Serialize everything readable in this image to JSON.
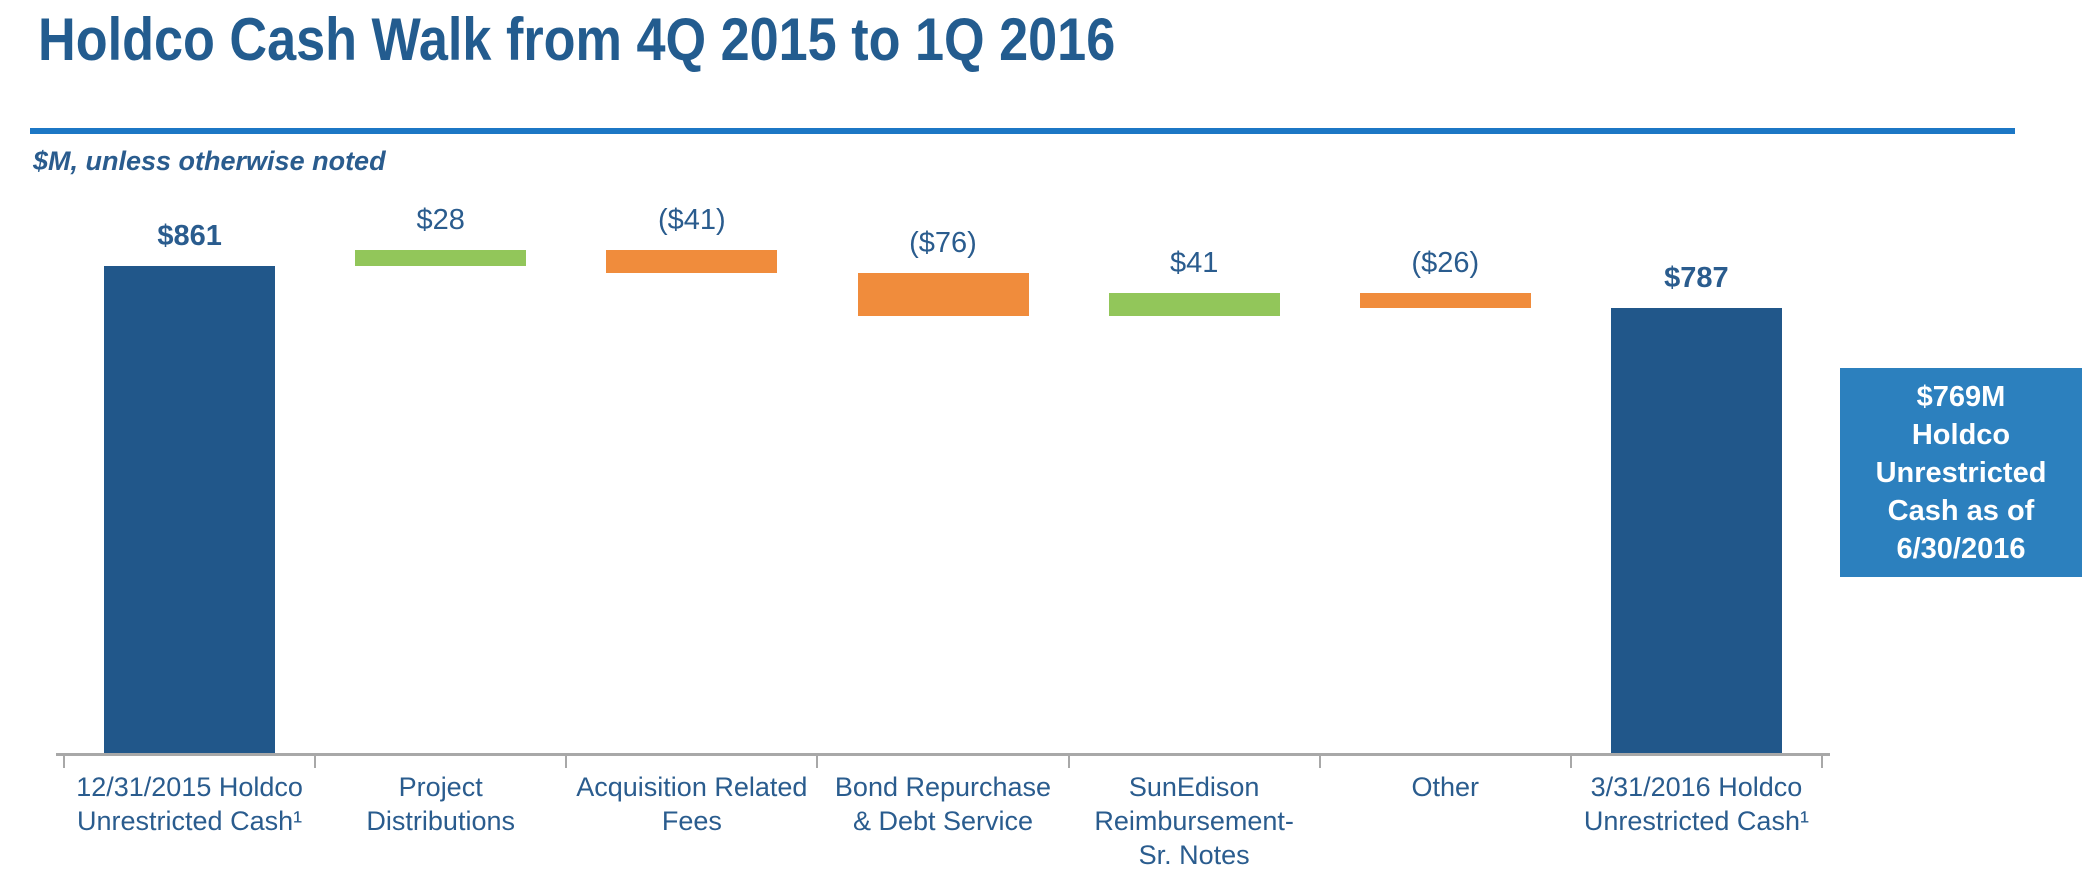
{
  "page": {
    "title": "Holdco Cash Walk from 4Q 2015 to 1Q 2016",
    "subtitle": "$M, unless otherwise noted"
  },
  "colors": {
    "title_text": "#235C8F",
    "label_text": "#2A5C8E",
    "divider": "#1C77C5",
    "bar_total": "#21578A",
    "bar_increase": "#92C65A",
    "bar_decrease": "#F08C3C",
    "axis": "#A8A8A8",
    "callout_bg": "#2C80BE",
    "callout_text": "#FFFFFF"
  },
  "chart_data": {
    "type": "bar",
    "subtype": "waterfall",
    "title": "Holdco Cash Walk from 4Q 2015 to 1Q 2016",
    "units": "$M",
    "grid": false,
    "ylim": [
      0,
      940
    ],
    "categories": [
      "12/31/2015 Holdco Unrestricted Cash¹",
      "Project Distributions",
      "Acquisition Related Fees",
      "Bond Repurchase & Debt Service",
      "SunEdison Reimbursement- Sr. Notes",
      "Other",
      "3/31/2016 Holdco Unrestricted Cash¹"
    ],
    "steps": [
      {
        "category_lines": [
          "12/31/2015 Holdco",
          "Unrestricted Cash¹"
        ],
        "label": "$861",
        "value": 861,
        "kind": "total",
        "label_bold": true
      },
      {
        "category_lines": [
          "Project",
          "Distributions"
        ],
        "label": "$28",
        "value": 28,
        "kind": "increase",
        "label_bold": false
      },
      {
        "category_lines": [
          "Acquisition Related",
          "Fees"
        ],
        "label": "($41)",
        "value": -41,
        "kind": "decrease",
        "label_bold": false
      },
      {
        "category_lines": [
          "Bond Repurchase",
          "& Debt Service"
        ],
        "label": "($76)",
        "value": -76,
        "kind": "decrease",
        "label_bold": false
      },
      {
        "category_lines": [
          "SunEdison",
          "Reimbursement-",
          "Sr. Notes"
        ],
        "label": "$41",
        "value": 41,
        "kind": "increase",
        "label_bold": false
      },
      {
        "category_lines": [
          "Other"
        ],
        "label": "($26)",
        "value": -26,
        "kind": "decrease",
        "label_bold": false
      },
      {
        "category_lines": [
          "3/31/2016 Holdco",
          "Unrestricted Cash¹"
        ],
        "label": "$787",
        "value": 787,
        "kind": "total",
        "label_bold": true
      }
    ],
    "running_totals": [
      861,
      889,
      848,
      772,
      813,
      787,
      787
    ]
  },
  "callout": {
    "lines": [
      "$769M",
      "Holdco",
      "Unrestricted",
      "Cash as of",
      "6/30/2016"
    ],
    "text": "$769M Holdco Unrestricted Cash as of 6/30/2016"
  }
}
